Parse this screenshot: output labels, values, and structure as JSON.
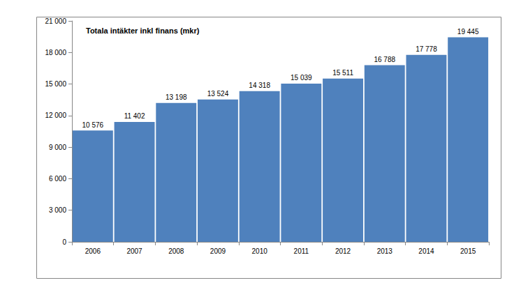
{
  "chart_data": {
    "type": "bar",
    "title": "Totala intäkter inkl finans (mkr)",
    "categories": [
      "2006",
      "2007",
      "2008",
      "2009",
      "2010",
      "2011",
      "2012",
      "2013",
      "2014",
      "2015"
    ],
    "values": [
      10576,
      11402,
      13198,
      13524,
      14318,
      15039,
      15511,
      16788,
      17778,
      19445
    ],
    "value_labels": [
      "10 576",
      "11 402",
      "13 198",
      "13 524",
      "14 318",
      "15 039",
      "15 511",
      "16 788",
      "17 778",
      "19 445"
    ],
    "color": "#4f81bd",
    "data_labels": true,
    "grid": false,
    "ylim": [
      0,
      21000
    ],
    "yticks": [
      0,
      {
        "value": 3000,
        "label": "3 000"
      },
      {
        "value": 6000,
        "label": "6 000"
      },
      {
        "value": 9000,
        "label": "9 000"
      },
      {
        "value": 12000,
        "label": "12 000"
      },
      {
        "value": 15000,
        "label": "15 000"
      },
      {
        "value": 18000,
        "label": "18 000"
      },
      {
        "value": 21000,
        "label": "21 000"
      }
    ]
  }
}
